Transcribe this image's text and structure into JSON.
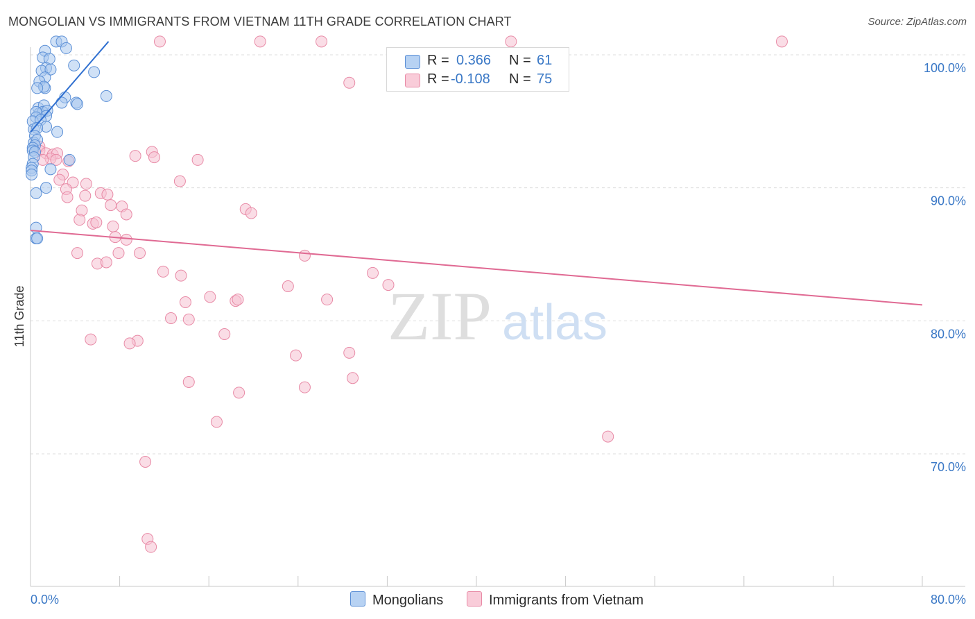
{
  "title": "MONGOLIAN VS IMMIGRANTS FROM VIETNAM 11TH GRADE CORRELATION CHART",
  "source": "Source: ZipAtlas.com",
  "watermark": {
    "zip": "ZIP",
    "atlas": "atlas"
  },
  "legend": {
    "r_label": "R =",
    "n_label": "N =",
    "series1": {
      "r": "0.366",
      "n": "61"
    },
    "series2": {
      "r": "-0.108",
      "n": "75"
    }
  },
  "bottom_legend": {
    "series1": "Mongolians",
    "series2": "Immigrants from Vietnam"
  },
  "colors": {
    "mongolian_fill": "#a9c8ef",
    "mongolian_stroke": "#5b8fd6",
    "mongolian_line": "#2f6fd0",
    "vietnam_fill": "#f6c1d1",
    "vietnam_stroke": "#e88aa6",
    "vietnam_line": "#e06a93",
    "tick_label": "#3a78c6",
    "grid": "#dcdcdc"
  },
  "chart_data": {
    "type": "scatter",
    "title": "MONGOLIAN VS IMMIGRANTS FROM VIETNAM 11TH GRADE CORRELATION CHART",
    "xlabel": "",
    "ylabel": "11th Grade",
    "xlim": [
      0,
      80
    ],
    "ylim": [
      60.5,
      101
    ],
    "x_tick_labels": [
      {
        "value": 0,
        "label": "0.0%"
      },
      {
        "value": 80,
        "label": "80.0%"
      }
    ],
    "y_tick_labels": [
      {
        "value": 100,
        "label": "100.0%"
      },
      {
        "value": 90,
        "label": "90.0%"
      },
      {
        "value": 80,
        "label": "80.0%"
      },
      {
        "value": 70,
        "label": "70.0%"
      }
    ],
    "series": [
      {
        "name": "Mongolians",
        "r": 0.366,
        "n": 61,
        "trend": [
          [
            0.0,
            94.2
          ],
          [
            7.0,
            101.0
          ]
        ],
        "points": [
          [
            2.3,
            101.0
          ],
          [
            2.8,
            101.0
          ],
          [
            1.3,
            100.3
          ],
          [
            3.2,
            100.5
          ],
          [
            1.1,
            99.8
          ],
          [
            1.7,
            99.7
          ],
          [
            3.9,
            99.2
          ],
          [
            1.4,
            99.0
          ],
          [
            1.0,
            98.8
          ],
          [
            1.8,
            98.9
          ],
          [
            5.7,
            98.7
          ],
          [
            1.3,
            98.3
          ],
          [
            0.8,
            98.0
          ],
          [
            1.3,
            97.5
          ],
          [
            1.2,
            97.6
          ],
          [
            0.6,
            97.5
          ],
          [
            3.1,
            96.8
          ],
          [
            6.8,
            96.9
          ],
          [
            4.1,
            96.4
          ],
          [
            4.2,
            96.3
          ],
          [
            2.8,
            96.4
          ],
          [
            0.7,
            96.0
          ],
          [
            1.2,
            96.2
          ],
          [
            0.8,
            95.6
          ],
          [
            1.1,
            95.7
          ],
          [
            0.5,
            95.7
          ],
          [
            1.5,
            95.8
          ],
          [
            1.4,
            95.4
          ],
          [
            0.5,
            95.3
          ],
          [
            0.2,
            95.0
          ],
          [
            0.9,
            95.1
          ],
          [
            1.4,
            94.6
          ],
          [
            0.3,
            94.4
          ],
          [
            0.6,
            94.5
          ],
          [
            2.4,
            94.2
          ],
          [
            0.4,
            93.9
          ],
          [
            0.3,
            93.4
          ],
          [
            0.6,
            93.6
          ],
          [
            0.4,
            93.2
          ],
          [
            0.2,
            93.0
          ],
          [
            0.2,
            92.8
          ],
          [
            0.4,
            92.7
          ],
          [
            0.3,
            92.3
          ],
          [
            3.5,
            92.1
          ],
          [
            0.2,
            91.8
          ],
          [
            0.1,
            91.5
          ],
          [
            1.8,
            91.4
          ],
          [
            0.1,
            91.3
          ],
          [
            0.1,
            91.0
          ],
          [
            1.4,
            90.0
          ],
          [
            0.5,
            89.6
          ],
          [
            0.5,
            87.0
          ],
          [
            0.5,
            86.2
          ],
          [
            0.6,
            86.2
          ]
        ]
      },
      {
        "name": "Immigrants from Vietnam",
        "r": -0.108,
        "n": 75,
        "trend": [
          [
            0.0,
            86.8
          ],
          [
            80.0,
            81.2
          ]
        ],
        "points": [
          [
            11.6,
            101.0
          ],
          [
            20.6,
            101.0
          ],
          [
            26.1,
            101.0
          ],
          [
            43.1,
            101.0
          ],
          [
            67.4,
            101.0
          ],
          [
            28.6,
            97.9
          ],
          [
            0.8,
            93.1
          ],
          [
            0.8,
            92.8
          ],
          [
            1.4,
            92.6
          ],
          [
            2.0,
            92.5
          ],
          [
            2.4,
            92.6
          ],
          [
            1.8,
            92.2
          ],
          [
            1.1,
            92.1
          ],
          [
            2.3,
            92.1
          ],
          [
            3.4,
            92.0
          ],
          [
            10.9,
            92.7
          ],
          [
            9.4,
            92.4
          ],
          [
            11.1,
            92.3
          ],
          [
            15.0,
            92.1
          ],
          [
            2.9,
            91.0
          ],
          [
            2.6,
            90.6
          ],
          [
            3.8,
            90.4
          ],
          [
            5.0,
            90.3
          ],
          [
            13.4,
            90.5
          ],
          [
            3.2,
            89.9
          ],
          [
            6.3,
            89.6
          ],
          [
            6.9,
            89.5
          ],
          [
            3.3,
            89.3
          ],
          [
            4.9,
            89.4
          ],
          [
            7.2,
            88.7
          ],
          [
            8.2,
            88.6
          ],
          [
            4.6,
            88.3
          ],
          [
            8.6,
            88.0
          ],
          [
            19.3,
            88.4
          ],
          [
            19.8,
            88.1
          ],
          [
            4.4,
            87.6
          ],
          [
            5.6,
            87.3
          ],
          [
            5.9,
            87.4
          ],
          [
            7.4,
            87.1
          ],
          [
            7.6,
            86.3
          ],
          [
            8.6,
            86.1
          ],
          [
            4.2,
            85.1
          ],
          [
            7.9,
            85.1
          ],
          [
            9.8,
            85.1
          ],
          [
            24.6,
            84.9
          ],
          [
            6.0,
            84.3
          ],
          [
            6.8,
            84.4
          ],
          [
            11.9,
            83.7
          ],
          [
            13.5,
            83.4
          ],
          [
            30.7,
            83.6
          ],
          [
            23.1,
            82.6
          ],
          [
            32.1,
            82.7
          ],
          [
            16.1,
            81.8
          ],
          [
            26.6,
            81.6
          ],
          [
            18.4,
            81.5
          ],
          [
            18.6,
            81.6
          ],
          [
            13.9,
            81.4
          ],
          [
            12.6,
            80.2
          ],
          [
            14.2,
            80.1
          ],
          [
            17.4,
            79.0
          ],
          [
            9.6,
            78.5
          ],
          [
            5.4,
            78.6
          ],
          [
            8.9,
            78.3
          ],
          [
            23.8,
            77.4
          ],
          [
            28.6,
            77.6
          ],
          [
            28.9,
            75.7
          ],
          [
            14.2,
            75.4
          ],
          [
            24.6,
            75.0
          ],
          [
            18.7,
            74.6
          ],
          [
            16.7,
            72.4
          ],
          [
            51.8,
            71.3
          ],
          [
            10.3,
            69.4
          ],
          [
            10.5,
            63.6
          ],
          [
            10.8,
            63.0
          ]
        ]
      }
    ]
  }
}
